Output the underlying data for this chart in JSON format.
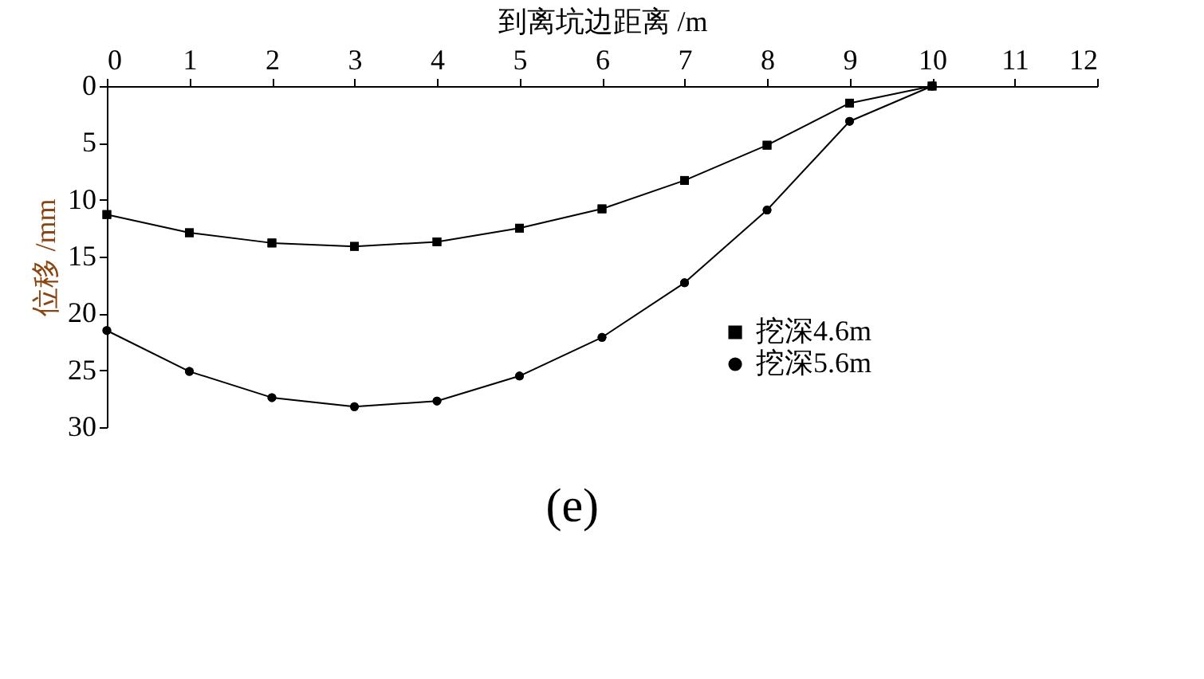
{
  "chart_data": {
    "type": "line",
    "xlabel": "到离坑边距离 /m",
    "ylabel": "位移 /mm",
    "x": [
      0,
      1,
      2,
      3,
      4,
      5,
      6,
      7,
      8,
      9,
      10
    ],
    "series": [
      {
        "name": "挖深4.6m",
        "color": "#000000",
        "marker": "square",
        "values": [
          11.3,
          12.9,
          13.8,
          14.1,
          13.7,
          12.5,
          10.8,
          8.3,
          5.2,
          1.5,
          0
        ]
      },
      {
        "name": "挖深5.6m",
        "color": "#000000",
        "marker": "circle",
        "values": [
          21.5,
          25.1,
          27.4,
          28.2,
          27.7,
          25.5,
          22.1,
          17.3,
          10.9,
          3.1,
          0
        ]
      }
    ],
    "xlim": [
      0,
      12
    ],
    "xticks": [
      0,
      1,
      2,
      3,
      4,
      5,
      6,
      7,
      8,
      9,
      10,
      11,
      12
    ],
    "ylim": [
      30,
      0
    ],
    "yticks": [
      0,
      5,
      10,
      15,
      20,
      25,
      30
    ],
    "grid": false,
    "legend": "bottom right",
    "line_style": "solid",
    "annotations": [
      "(e)"
    ]
  }
}
